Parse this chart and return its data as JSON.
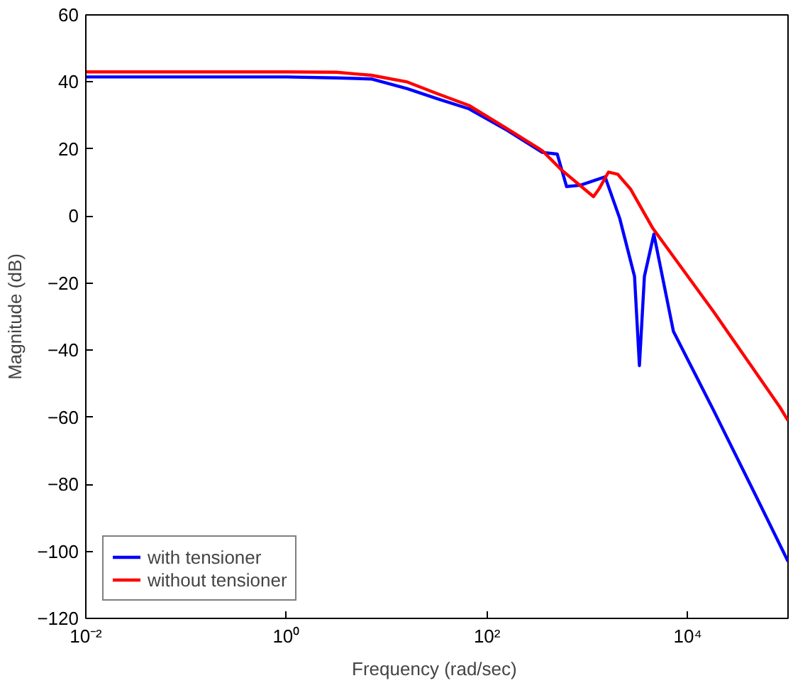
{
  "chart_data": {
    "type": "line",
    "xlabel": "Frequency  (rad/sec)",
    "ylabel": "Magnitude (dB)",
    "log": "x",
    "grid": false,
    "legend": "bottom left",
    "line_style": "solid",
    "marker": "none",
    "xlim": [
      0.01,
      100000
    ],
    "ylim": [
      -120,
      60
    ],
    "xticks": [
      {
        "value": 0.01,
        "label": "10⁻²"
      },
      {
        "value": 1,
        "label": "10⁰"
      },
      {
        "value": 100,
        "label": "10²"
      },
      {
        "value": 10000,
        "label": "10⁴"
      }
    ],
    "yticks": [
      -120,
      -100,
      -80,
      -60,
      -40,
      -20,
      0,
      20,
      40,
      60
    ],
    "series": [
      {
        "name": "with tensioner",
        "color": "#0000ff",
        "x": [
          0.01,
          1,
          3.16,
          7,
          16,
          32,
          66,
          160,
          355,
          500,
          620,
          850,
          1500,
          2100,
          2950,
          3300,
          3700,
          4600,
          7200,
          18000,
          47000,
          100000
        ],
        "values": [
          41.5,
          41.5,
          41.2,
          40.9,
          38,
          35,
          32,
          25.5,
          19,
          18.5,
          8.8,
          9.2,
          11.7,
          -0.7,
          -18,
          -44.6,
          -18,
          -5.4,
          -34.4,
          -57.8,
          -83,
          -103
        ]
      },
      {
        "name": "without tensioner",
        "color": "#ff0000",
        "x": [
          0.01,
          1,
          3.16,
          7,
          16,
          32,
          66,
          160,
          355,
          550,
          1150,
          1300,
          1620,
          2000,
          2700,
          4500,
          18000,
          83000,
          100000
        ],
        "values": [
          43,
          43,
          42.9,
          42,
          40,
          36.5,
          33,
          26,
          19.5,
          13.8,
          5.8,
          8,
          13.1,
          12.5,
          8,
          -3.7,
          -28.4,
          -57,
          -61
        ]
      }
    ]
  }
}
